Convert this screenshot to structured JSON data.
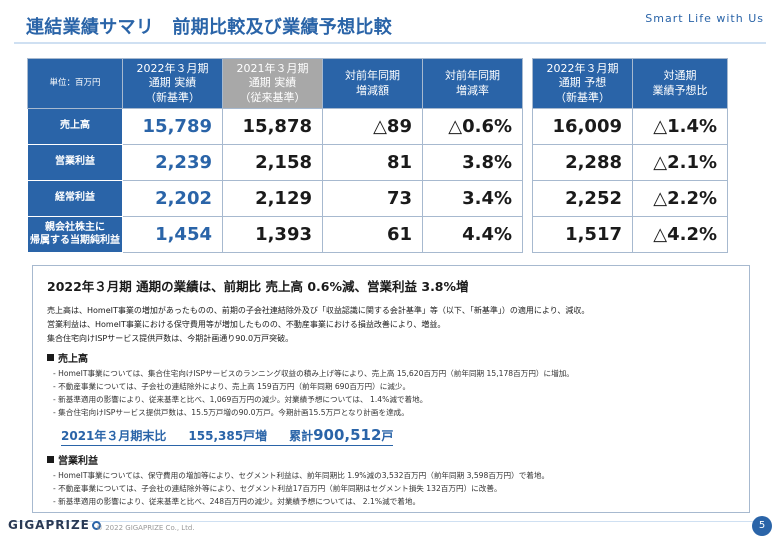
{
  "header": {
    "title": "連結業績サマリ　前期比較及び業績予想比較",
    "tagline": "Smart Life with Us"
  },
  "table": {
    "unit": "単位：百万円",
    "columns": [
      "2022年３月期\n通期 実績\n（新基準）",
      "2021年３月期\n通期 実績\n（従来基準）",
      "対前年同期\n増減額",
      "対前年同期\n増減率",
      "2022年３月期\n通期 予想\n（新基準）",
      "対通期\n業績予想比"
    ],
    "rows": [
      {
        "label": "売上高",
        "cells": [
          "15,789",
          "15,878",
          "△89",
          "△0.6%",
          "16,009",
          "△1.4%"
        ]
      },
      {
        "label": "営業利益",
        "cells": [
          "2,239",
          "2,158",
          "81",
          "3.8%",
          "2,288",
          "△2.1%"
        ]
      },
      {
        "label": "経常利益",
        "cells": [
          "2,202",
          "2,129",
          "73",
          "3.4%",
          "2,252",
          "△2.2%"
        ]
      },
      {
        "label": "親会社株主に\n帰属する当期純利益",
        "cells": [
          "1,454",
          "1,393",
          "61",
          "4.4%",
          "1,517",
          "△4.2%"
        ]
      }
    ]
  },
  "panel": {
    "headline": "2022年３月期 通期の業績は、前期比 売上高 0.6%減、営業利益 3.8%増",
    "intro": [
      "売上高は、HomeIT事業の増加があったものの、前期の子会社連結除外及び「収益認識に関する会計基準」等（以下、「新基準」）の適用により、減収。",
      "営業利益は、HomeIT事業における保守費用等が増加したものの、不動産事業における損益改善により、増益。",
      "集合住宅向けISPサービス提供戸数は、今期計画通り90.0万戸突破。"
    ],
    "sales": {
      "heading": "売上高",
      "bullets": [
        "HomeIT事業については、集合住宅向けISPサービスのランニング収益の積み上げ等により、売上高 15,620百万円（前年同期 15,178百万円）に増加。",
        "不動産事業については、子会社の連結除外により、売上高 159百万円（前年同期 690百万円）に減少。",
        "新基準適用の影響により、従来基準と比べ、1,069百万円の減少。対業績予想については、 1.4%減で着地。",
        "集合住宅向けISPサービス提供戸数は、15.5万戸増の90.0万戸。今期計画15.5万戸となり計画を達成。"
      ]
    },
    "highlight": {
      "period": "2021年３月期末比",
      "increase": "155,385戸増",
      "total_label": "累計",
      "total_value": "900,512",
      "total_unit": "戸"
    },
    "op_profit": {
      "heading": "営業利益",
      "bullets": [
        "HomeIT事業については、保守費用の増加等により、セグメント利益は、前年同期比 1.9%減の3,532百万円（前年同期  3,598百万円）で着地。",
        "不動産事業については、子会社の連結除外等により、セグメント利益17百万円（前年同期はセグメント損失  132百万円）に改善。",
        "新基準適用の影響により、従来基準と比べ、248百万円の減少。対業績予想については、 2.1%減で着地。"
      ]
    }
  },
  "footer": {
    "logo": "GIGAPRIZE",
    "copyright": "© 2022 GIGAPRIZE Co., Ltd.",
    "page": "5"
  },
  "colors": {
    "brand_blue": "#2a64a8",
    "old_basis_gray": "#a8a8a8",
    "border": "#a7b9cf"
  }
}
